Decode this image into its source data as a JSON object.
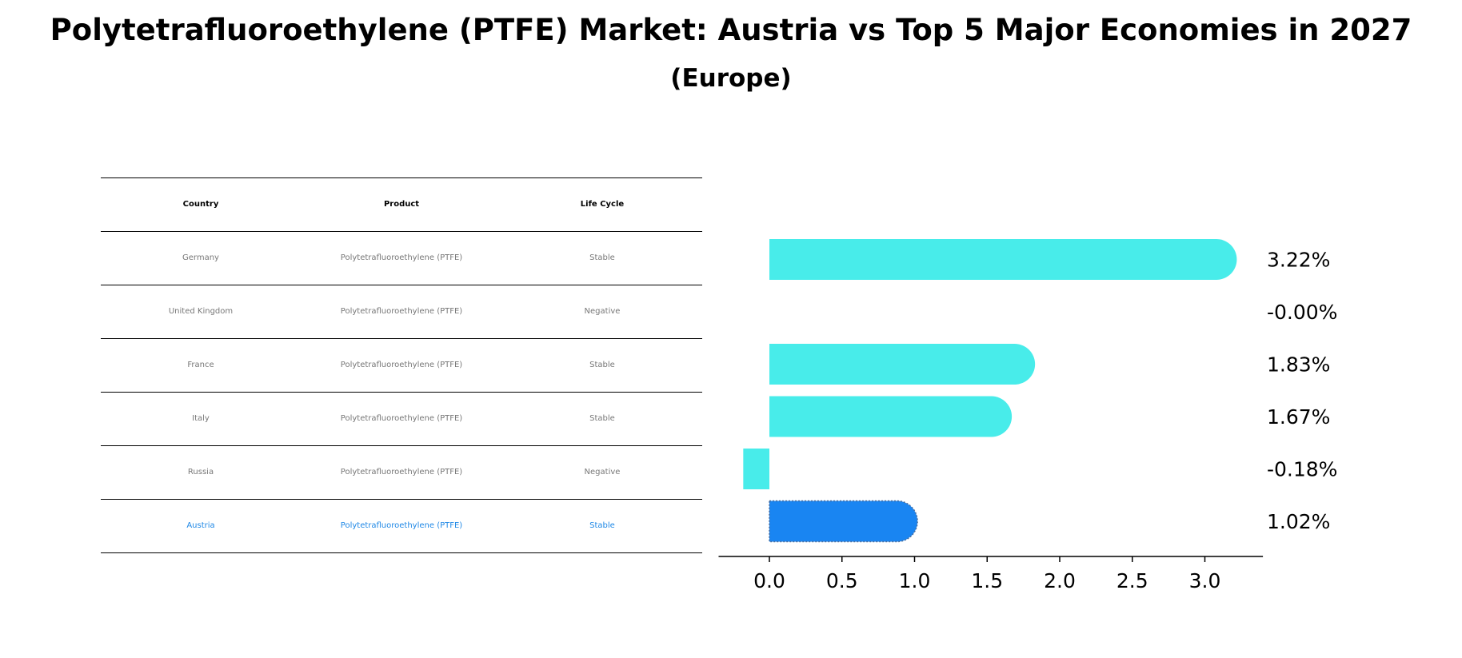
{
  "title": "Polytetrafluoroethylene (PTFE) Market: Austria vs Top 5 Major Economies in 2027",
  "subtitle": "(Europe)",
  "table": {
    "headers": [
      "Country",
      "Product",
      "Life Cycle"
    ],
    "rows": [
      {
        "country": "Germany",
        "product": "Polytetrafluoroethylene (PTFE)",
        "life_cycle": "Stable"
      },
      {
        "country": "United Kingdom",
        "product": "Polytetrafluoroethylene (PTFE)",
        "life_cycle": "Negative"
      },
      {
        "country": "France",
        "product": "Polytetrafluoroethylene (PTFE)",
        "life_cycle": "Stable"
      },
      {
        "country": "Italy",
        "product": "Polytetrafluoroethylene (PTFE)",
        "life_cycle": "Stable"
      },
      {
        "country": "Russia",
        "product": "Polytetrafluoroethylene (PTFE)",
        "life_cycle": "Negative"
      },
      {
        "country": "Austria",
        "product": "Polytetrafluoroethylene (PTFE)",
        "life_cycle": "Stable"
      }
    ]
  },
  "chart_data": {
    "type": "bar",
    "orientation": "horizontal",
    "categories": [
      "Germany",
      "United Kingdom",
      "France",
      "Italy",
      "Russia",
      "Austria"
    ],
    "values": [
      3.22,
      -0.0,
      1.83,
      1.67,
      -0.18,
      1.02
    ],
    "value_labels": [
      "3.22%",
      "-0.00%",
      "1.83%",
      "1.67%",
      "-0.18%",
      "1.02%"
    ],
    "highlight": "Austria",
    "xlim": [
      -0.35,
      3.4
    ],
    "xticks": [
      0.0,
      0.5,
      1.0,
      1.5,
      2.0,
      2.5,
      3.0
    ],
    "xtick_labels": [
      "0.0",
      "0.5",
      "1.0",
      "1.5",
      "2.0",
      "2.5",
      "3.0"
    ],
    "grid": false,
    "colors": {
      "bar": "#48ecea",
      "highlight": "#1985f2"
    }
  }
}
